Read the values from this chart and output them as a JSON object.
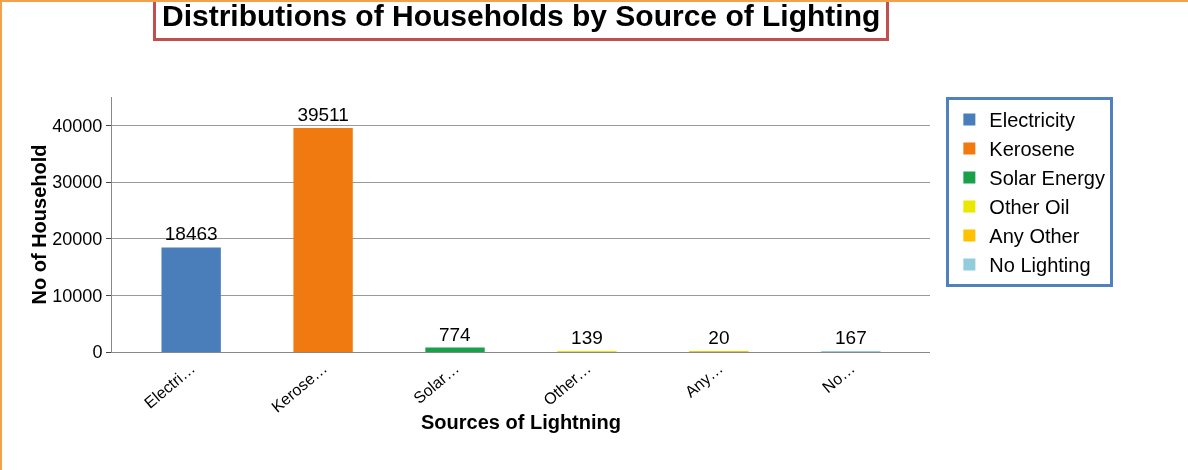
{
  "chart_data": {
    "type": "bar",
    "title": "Distributions of Households by Source of Lighting",
    "xlabel": "Sources of Lightning",
    "ylabel": "No of Household",
    "categories": [
      "Electri…",
      "Kerose…",
      "Solar…",
      "Other…",
      "Any…",
      "No…"
    ],
    "series": [
      {
        "name": "Electricity",
        "color": "#4a7ebb",
        "values": [
          18463,
          null,
          null,
          null,
          null,
          null
        ]
      },
      {
        "name": "Kerosene",
        "color": "#f07a0f",
        "values": [
          null,
          39511,
          null,
          null,
          null,
          null
        ]
      },
      {
        "name": "Solar Energy",
        "color": "#1aa04a",
        "values": [
          null,
          null,
          774,
          null,
          null,
          null
        ]
      },
      {
        "name": "Other Oil",
        "color": "#e8e800",
        "values": [
          null,
          null,
          null,
          139,
          null,
          null
        ]
      },
      {
        "name": "Any Other",
        "color": "#ffc000",
        "values": [
          null,
          null,
          null,
          null,
          20,
          null
        ]
      },
      {
        "name": "No Lighting",
        "color": "#92cddc",
        "values": [
          null,
          null,
          null,
          null,
          null,
          167
        ]
      }
    ],
    "ylim": [
      0,
      45000
    ],
    "yticks": [
      0,
      10000,
      20000,
      30000,
      40000
    ],
    "grid": "y",
    "legend": "right",
    "data_labels": true
  }
}
